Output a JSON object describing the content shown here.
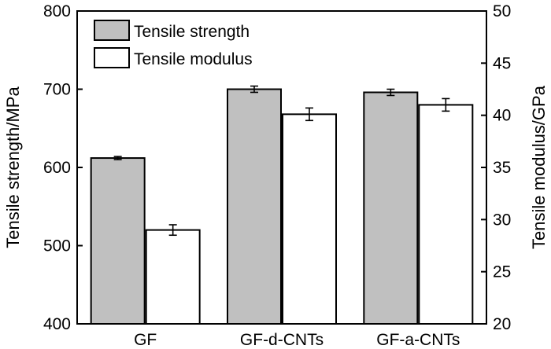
{
  "chart_data": {
    "type": "bar",
    "categories": [
      "GF",
      "GF-d-CNTs",
      "GF-a-CNTs"
    ],
    "series": [
      {
        "name": "Tensile strength",
        "axis": "left",
        "values": [
          612,
          700,
          696
        ],
        "errors": [
          2,
          4,
          4
        ],
        "color": "#c0c0c0"
      },
      {
        "name": "Tensile modulus",
        "axis": "right",
        "values": [
          29.0,
          40.1,
          41.0
        ],
        "errors": [
          0.5,
          0.6,
          0.6
        ],
        "color": "#ffffff"
      }
    ],
    "ylabel": "Tensile strength/MPa",
    "ylim": [
      400,
      800
    ],
    "yticks": [
      "400",
      "500",
      "600",
      "700",
      "800"
    ],
    "y2label": "Tensile modulus/GPa",
    "y2lim": [
      20,
      50
    ],
    "y2ticks": [
      "20",
      "25",
      "30",
      "35",
      "40",
      "45",
      "50"
    ],
    "legend_position": "top-left",
    "grid": false
  }
}
